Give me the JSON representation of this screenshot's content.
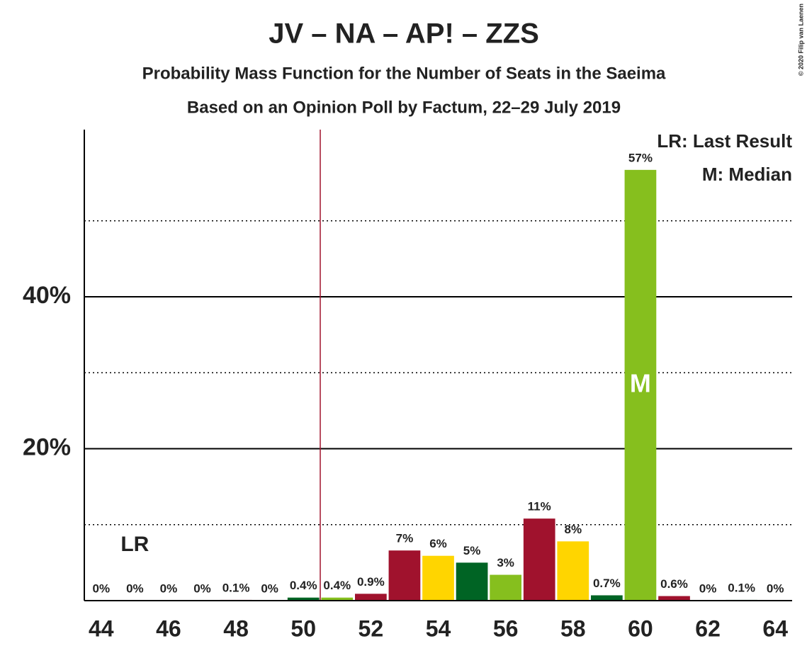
{
  "chart_data": {
    "type": "bar",
    "title": "JV – NA – AP! – ZZS",
    "subtitle": "Probability Mass Function for the Number of Seats in the Saeima",
    "subtitle2": "Based on an Opinion Poll by Factum, 22–29 July 2019",
    "copyright": "© 2020 Filip van Laenen",
    "x": [
      44,
      45,
      46,
      47,
      48,
      49,
      50,
      51,
      52,
      53,
      54,
      55,
      56,
      57,
      58,
      59,
      60,
      61,
      62,
      63,
      64
    ],
    "values": [
      0,
      0,
      0,
      0,
      0.1,
      0,
      0.4,
      0.4,
      0.9,
      6.6,
      5.9,
      5.0,
      3.4,
      10.8,
      7.8,
      0.7,
      56.7,
      0.6,
      0,
      0.1,
      0
    ],
    "value_labels": [
      "0%",
      "0%",
      "0%",
      "0%",
      "0.1%",
      "0%",
      "0.4%",
      "0.4%",
      "0.9%",
      "7%",
      "6%",
      "5%",
      "3%",
      "11%",
      "8%",
      "0.7%",
      "57%",
      "0.6%",
      "0%",
      "0.1%",
      "0%"
    ],
    "colors": [
      "#a0122d",
      "#ffd500",
      "#006424",
      "#86bf1e",
      "#a0122d",
      "#ffd500",
      "#006424",
      "#86bf1e",
      "#a0122d",
      "#a0122d",
      "#ffd500",
      "#006424",
      "#86bf1e",
      "#a0122d",
      "#ffd500",
      "#006424",
      "#86bf1e",
      "#a0122d",
      "#ffd500",
      "#006424",
      "#86bf1e"
    ],
    "xlim": [
      43.5,
      64.5
    ],
    "xticks": [
      44,
      46,
      48,
      50,
      52,
      54,
      56,
      58,
      60,
      62,
      64
    ],
    "ylim": [
      0,
      62
    ],
    "yticks": [
      {
        "value": 20,
        "label": "20%"
      },
      {
        "value": 40,
        "label": "40%"
      }
    ],
    "minor_yticks": [
      10,
      30,
      50
    ],
    "threshold": 50.5,
    "threshold_color": "#a0122d",
    "last_result": {
      "seat": 45,
      "label": "LR"
    },
    "median": {
      "seat": 60,
      "label": "M"
    },
    "legend": [
      "LR: Last Result",
      "M: Median"
    ]
  }
}
